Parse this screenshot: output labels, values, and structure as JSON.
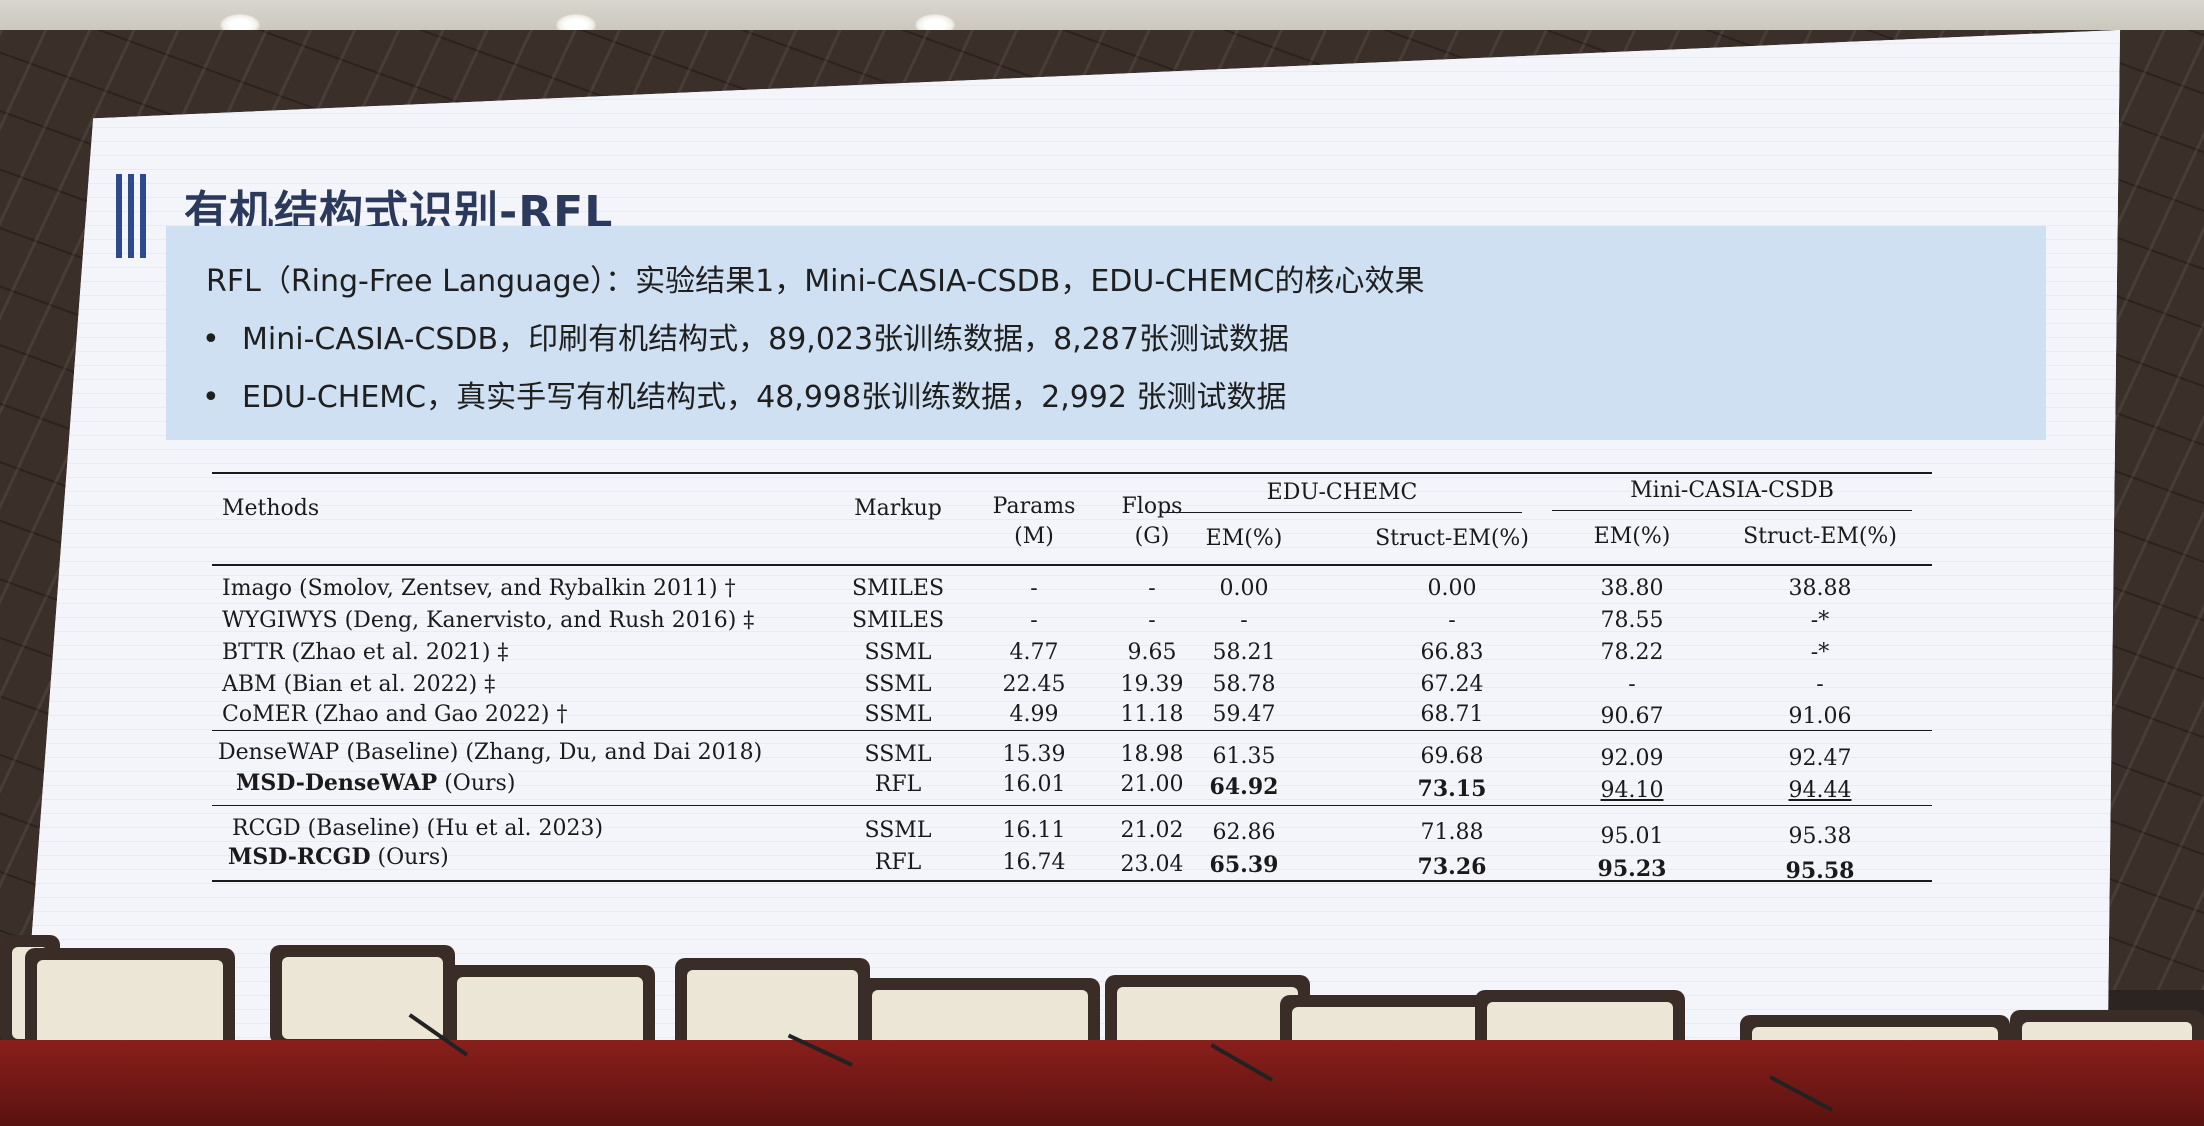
{
  "slide": {
    "title": "有机结构式识别-RFL",
    "info_heading": "RFL（Ring-Free Language）：实验结果1，Mini-CASIA-CSDB，EDU-CHEMC的核心效果",
    "bullets": [
      "Mini-CASIA-CSDB，印刷有机结构式，89,023张训练数据，8,287张测试数据",
      "EDU-CHEMC，真实手写有机结构式，48,998张训练数据，2,992 张测试数据"
    ],
    "bullet_char": "•"
  },
  "table": {
    "headers": {
      "methods": "Methods",
      "markup": "Markup",
      "params": "Params",
      "params_unit": "(M)",
      "flops": "Flops",
      "flops_unit": "(G)",
      "group1": "EDU-CHEMC",
      "group2": "Mini-CASIA-CSDB",
      "em": "EM(%)",
      "struct_em": "Struct-EM(%)",
      "em2": "EM(%)",
      "struct_em2": "Struct-EM(%)"
    },
    "rows": [
      {
        "method": "Imago (Smolov, Zentsev, and Rybalkin 2011) †",
        "markup": "SMILES",
        "params": "-",
        "flops": "-",
        "em1": "0.00",
        "sem1": "0.00",
        "em2": "38.80",
        "sem2": "38.88"
      },
      {
        "method": "WYGIWYS (Deng, Kanervisto, and Rush 2016) ‡",
        "markup": "SMILES",
        "params": "-",
        "flops": "-",
        "em1": "-",
        "sem1": "-",
        "em2": "78.55",
        "sem2": "-*"
      },
      {
        "method": "BTTR (Zhao et al. 2021) ‡",
        "markup": "SSML",
        "params": "4.77",
        "flops": "9.65",
        "em1": "58.21",
        "sem1": "66.83",
        "em2": "78.22",
        "sem2": "-*"
      },
      {
        "method": "ABM (Bian et al. 2022) ‡",
        "markup": "SSML",
        "params": "22.45",
        "flops": "19.39",
        "em1": "58.78",
        "sem1": "67.24",
        "em2": "-",
        "sem2": "-"
      },
      {
        "method": "CoMER (Zhao and Gao 2022) †",
        "markup": "SSML",
        "params": "4.99",
        "flops": "11.18",
        "em1": "59.47",
        "sem1": "68.71",
        "em2": "90.67",
        "sem2": "91.06"
      },
      {
        "method": "DenseWAP (Baseline) (Zhang, Du, and Dai 2018)",
        "markup": "SSML",
        "params": "15.39",
        "flops": "18.98",
        "em1": "61.35",
        "sem1": "69.68",
        "em2": "92.09",
        "sem2": "92.47"
      },
      {
        "method_bold": "MSD-DenseWAP",
        "method_rest": " (Ours)",
        "markup": "RFL",
        "params": "16.01",
        "flops": "21.00",
        "em1": "64.92",
        "sem1": "73.15",
        "em2": "94.10",
        "sem2": "94.44"
      },
      {
        "method": "RCGD (Baseline) (Hu et al. 2023)",
        "markup": "SSML",
        "params": "16.11",
        "flops": "21.02",
        "em1": "62.86",
        "sem1": "71.88",
        "em2": "95.01",
        "sem2": "95.38"
      },
      {
        "method_bold": "MSD-RCGD",
        "method_rest": " (Ours)",
        "markup": "RFL",
        "params": "16.74",
        "flops": "23.04",
        "em1": "65.39",
        "sem1": "73.26",
        "em2": "95.23",
        "sem2": "95.58"
      }
    ]
  },
  "colors": {
    "title_bar": "#2d4a8e",
    "info_box": "#cfe0f3",
    "desk": "#8a1f1b",
    "frame": "#3a2f29"
  }
}
